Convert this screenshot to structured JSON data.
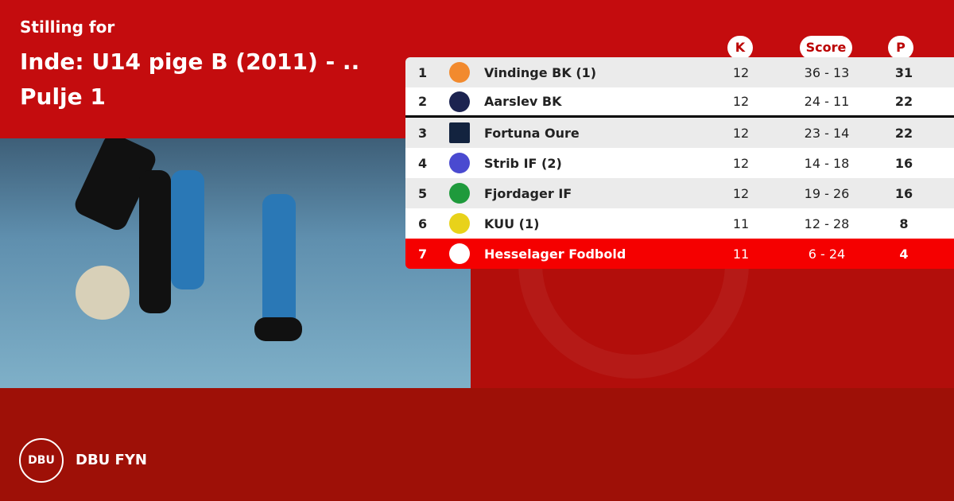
{
  "header": {
    "subtitle": "Stilling for",
    "title": "Inde: U14 pige B (2011) - .. Pulje 1"
  },
  "columns": {
    "k": "K",
    "score": "Score",
    "p": "P"
  },
  "rows": [
    {
      "pos": "1",
      "team": "Vindinge BK (1)",
      "k": "12",
      "score": "36 - 13",
      "p": "31",
      "logo_color": "#f28a2e"
    },
    {
      "pos": "2",
      "team": "Aarslev BK",
      "k": "12",
      "score": "24 - 11",
      "p": "22",
      "logo_color": "#1c2350"
    },
    {
      "pos": "3",
      "team": "Fortuna Oure",
      "k": "12",
      "score": "23 - 14",
      "p": "22",
      "logo_color": "#13233f"
    },
    {
      "pos": "4",
      "team": "Strib IF (2)",
      "k": "12",
      "score": "14 - 18",
      "p": "16",
      "logo_color": "#4a4ad0"
    },
    {
      "pos": "5",
      "team": "Fjordager IF",
      "k": "12",
      "score": "19 - 26",
      "p": "16",
      "logo_color": "#1f9a3c"
    },
    {
      "pos": "6",
      "team": "KUU (1)",
      "k": "11",
      "score": "12 - 28",
      "p": "8",
      "logo_color": "#e8d21a"
    },
    {
      "pos": "7",
      "team": "Hesselager Fodbold",
      "k": "11",
      "score": "6 - 24",
      "p": "4",
      "logo_color": "#ffffff",
      "highlight": true
    }
  ],
  "footer": {
    "logo_text": "DBU",
    "org": "DBU FYN"
  },
  "colors": {
    "top": "#c40c0e",
    "bottom": "#9e1007",
    "highlight": "#f50000"
  }
}
